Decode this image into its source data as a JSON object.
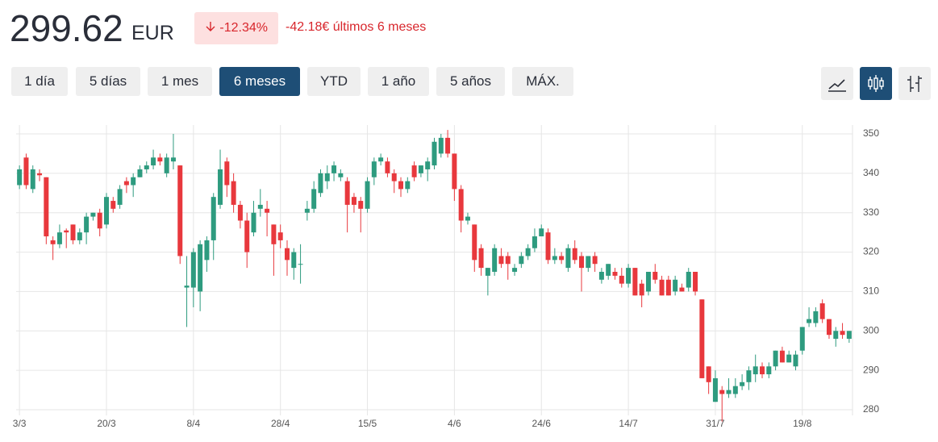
{
  "header": {
    "price": "299.62",
    "currency": "EUR",
    "change_pct": "-12.34%",
    "change_text": "-42.18€ últimos 6 meses"
  },
  "ranges": [
    "1 día",
    "5 días",
    "1 mes",
    "6 meses",
    "YTD",
    "1 año",
    "5 años",
    "MÁX."
  ],
  "selected_range": 3,
  "chart_data": {
    "type": "candlestick",
    "categories": [
      "3/3",
      null,
      null,
      null,
      null,
      null,
      null,
      null,
      null,
      null,
      null,
      null,
      null,
      "20/3",
      null,
      null,
      null,
      null,
      null,
      null,
      null,
      null,
      null,
      null,
      null,
      null,
      "8/4",
      null,
      null,
      null,
      null,
      null,
      null,
      null,
      null,
      null,
      null,
      null,
      null,
      "28/4",
      null,
      null,
      null,
      null,
      null,
      null,
      null,
      null,
      null,
      null,
      null,
      null,
      "15/5",
      null,
      null,
      null,
      null,
      null,
      null,
      null,
      null,
      null,
      null,
      null,
      null,
      "4/6",
      null,
      null,
      null,
      null,
      null,
      null,
      null,
      null,
      null,
      null,
      null,
      null,
      "24/6",
      null,
      null,
      null,
      null,
      null,
      null,
      null,
      null,
      null,
      null,
      null,
      null,
      "14/7",
      null,
      null,
      null,
      null,
      null,
      null,
      null,
      null,
      null,
      null,
      null,
      null,
      "31/7",
      null,
      null,
      null,
      null,
      null,
      null,
      null,
      null,
      null,
      null,
      null,
      null,
      "19/8",
      null,
      null,
      null,
      null,
      null,
      null,
      null
    ],
    "open": [
      337,
      344,
      336,
      340,
      339,
      323,
      322,
      325.5,
      327,
      323,
      325,
      329,
      330,
      327,
      333,
      332,
      338,
      337,
      339,
      341,
      342,
      344,
      340,
      343,
      342,
      311,
      311,
      310,
      318,
      323,
      332,
      343,
      338,
      332,
      328,
      325,
      331,
      331,
      327,
      325,
      321,
      316,
      317,
      330,
      331,
      335,
      338,
      340,
      339,
      338,
      334,
      333,
      331,
      339,
      343,
      343,
      340,
      338,
      336,
      342,
      340,
      341,
      342,
      345,
      349,
      345,
      336,
      328,
      327,
      321,
      314,
      315,
      319,
      319,
      315,
      317,
      319,
      321,
      324,
      325,
      318,
      319,
      316,
      321,
      319,
      316,
      319,
      313,
      314,
      315,
      314,
      312,
      316,
      312,
      310,
      315,
      313,
      313,
      310,
      311,
      311,
      315,
      308,
      291,
      282,
      285,
      284,
      284,
      286,
      287,
      289,
      291,
      289,
      291,
      295,
      292,
      291,
      295,
      302,
      302,
      307,
      303,
      298,
      300,
      298
    ],
    "high": [
      342,
      345,
      342,
      341,
      339,
      324,
      327,
      326,
      327,
      326,
      330,
      330,
      331,
      335,
      334,
      337,
      339,
      340,
      342,
      343,
      346,
      345,
      345,
      350,
      342,
      319,
      321,
      323,
      324,
      335,
      346,
      344,
      340,
      333,
      330,
      333,
      336,
      333,
      327,
      327,
      323,
      321,
      322,
      333,
      338,
      341,
      342,
      343,
      341,
      339,
      335,
      334,
      339,
      344,
      345,
      344,
      341,
      339,
      339,
      343,
      342,
      344,
      349,
      350,
      351,
      345,
      337,
      330,
      327,
      322,
      316,
      322,
      321,
      320,
      317,
      320,
      322,
      326,
      327,
      326,
      321,
      320,
      322,
      323,
      320,
      319,
      320,
      316,
      317,
      316,
      316,
      317,
      316,
      313,
      315,
      317,
      314,
      314,
      314,
      312,
      316,
      315,
      308,
      291,
      290,
      286,
      288,
      288,
      289,
      291,
      294,
      292,
      292,
      295,
      296,
      295,
      295,
      301,
      306,
      306,
      308,
      303,
      301,
      302,
      300
    ],
    "low": [
      336,
      336,
      335,
      338,
      322,
      318,
      321,
      321,
      322,
      322,
      322,
      328,
      324,
      326,
      330,
      331,
      335,
      334,
      339,
      340,
      341,
      342,
      339,
      341,
      317,
      301,
      306,
      305,
      315,
      318,
      331,
      334,
      330,
      326,
      316,
      324,
      329,
      324,
      314,
      321,
      314,
      313,
      312,
      328,
      330,
      334,
      336,
      338,
      338,
      325,
      330,
      325,
      330,
      337,
      342,
      339,
      335,
      334,
      335,
      338,
      339,
      338,
      341,
      344,
      344,
      333,
      325,
      327,
      315,
      314,
      309,
      314,
      316,
      313,
      314,
      316,
      318,
      320,
      324,
      317,
      317,
      317,
      315,
      317,
      310,
      315,
      315,
      312,
      313,
      313,
      311,
      311,
      309,
      306,
      309,
      312,
      309,
      309,
      309,
      310,
      310,
      309,
      288,
      284,
      282,
      277,
      283,
      283,
      285,
      285,
      287,
      288,
      288,
      290,
      292,
      292,
      290,
      294,
      301,
      301,
      302,
      298,
      296,
      298,
      297
    ],
    "close": [
      341,
      337,
      341,
      339.5,
      324,
      322,
      325,
      325,
      323,
      325,
      329,
      330,
      326,
      334,
      331,
      336,
      337,
      339,
      341,
      342,
      344,
      343,
      344,
      344,
      319,
      311.5,
      320,
      322,
      323,
      334,
      341,
      337,
      332,
      328,
      320,
      330,
      332,
      330,
      322,
      323,
      318,
      320,
      317,
      331,
      336,
      340,
      340,
      342,
      340,
      332,
      332,
      331,
      338,
      343,
      344,
      340,
      338,
      336,
      338,
      339,
      342,
      343,
      348,
      349,
      345,
      336,
      328,
      329,
      318,
      316,
      316,
      321,
      317,
      317,
      316,
      319,
      321,
      324,
      326,
      318,
      319,
      318,
      321,
      318,
      316,
      319,
      317,
      315,
      317,
      314,
      312,
      316,
      309,
      309,
      315,
      313,
      309,
      309,
      313,
      310,
      315,
      310,
      288,
      287,
      288,
      284,
      285,
      286,
      287,
      290,
      291,
      289,
      291,
      295,
      292,
      294,
      294,
      301,
      303,
      305,
      303,
      299,
      300,
      299,
      300
    ],
    "up_color": "#2e9b7f",
    "down_color": "#e8383d",
    "ylim": [
      278.57,
      352.25
    ],
    "yticks": [
      280,
      290,
      300,
      310,
      320,
      330,
      340,
      350
    ],
    "grid": true
  }
}
